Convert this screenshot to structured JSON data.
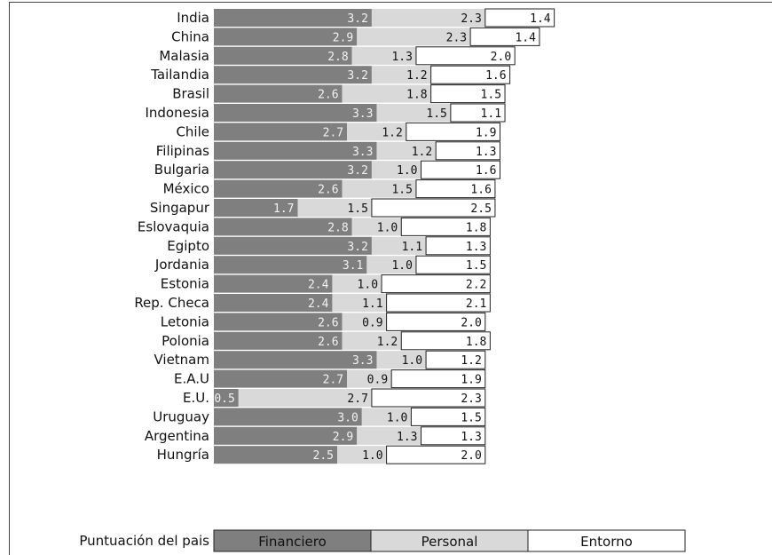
{
  "chart_data": {
    "type": "bar",
    "stacked": true,
    "orientation": "horizontal",
    "categories": [
      "India",
      "China",
      "Malasia",
      "Tailandia",
      "Brasil",
      "Indonesia",
      "Chile",
      "Filipinas",
      "Bulgaria",
      "México",
      "Singapur",
      "Eslovaquia",
      "Egipto",
      "Jordania",
      "Estonia",
      "Rep. Checa",
      "Letonia",
      "Polonia",
      "Vietnam",
      "E.A.U",
      "E.U.",
      "Uruguay",
      "Argentina",
      "Hungría"
    ],
    "series": [
      {
        "name": "Financiero",
        "color": "#7f7f7f",
        "values": [
          3.2,
          2.9,
          2.8,
          3.2,
          2.6,
          3.3,
          2.7,
          3.3,
          3.2,
          2.6,
          1.7,
          2.8,
          3.2,
          3.1,
          2.4,
          2.4,
          2.6,
          2.6,
          3.3,
          2.7,
          0.5,
          3.0,
          2.9,
          2.5
        ]
      },
      {
        "name": "Personal",
        "color": "#d9d9d9",
        "values": [
          2.3,
          2.3,
          1.3,
          1.2,
          1.8,
          1.5,
          1.2,
          1.2,
          1.0,
          1.5,
          1.5,
          1.0,
          1.1,
          1.0,
          1.0,
          1.1,
          0.9,
          1.2,
          1.0,
          0.9,
          2.7,
          1.0,
          1.3,
          1.0
        ]
      },
      {
        "name": "Entorno",
        "color": "#ffffff",
        "values": [
          1.4,
          1.4,
          2.0,
          1.6,
          1.5,
          1.1,
          1.9,
          1.3,
          1.6,
          1.6,
          2.5,
          1.8,
          1.3,
          1.5,
          2.2,
          2.1,
          2.0,
          1.8,
          1.2,
          1.9,
          2.3,
          1.5,
          1.3,
          2.0
        ]
      }
    ],
    "legend_title": "Puntuación del pais",
    "legend_position": "bottom"
  }
}
